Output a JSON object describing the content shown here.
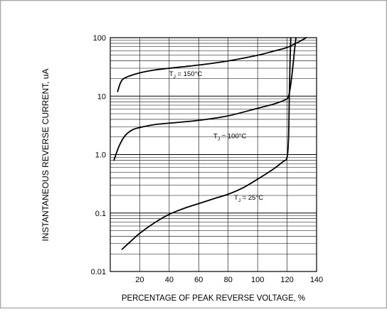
{
  "chart_data": {
    "type": "line",
    "title": "",
    "xlabel": "PERCENTAGE OF PEAK REVERSE VOLTAGE, %",
    "ylabel": "INSTANTANEOUS REVERSE CURRENT, uA",
    "x_range": [
      0,
      140
    ],
    "y_range": [
      0.01,
      100
    ],
    "y_scale": "log",
    "grid": "horizontal log minor gridlines",
    "x_ticks": [
      "20",
      "40",
      "60",
      "80",
      "100",
      "120",
      "140"
    ],
    "y_ticks": [
      "0.01",
      "0.1",
      "1.0",
      "10",
      "100"
    ],
    "series": [
      {
        "name": "T J = 150°C",
        "points": [
          [
            5,
            12
          ],
          [
            7,
            17
          ],
          [
            10,
            20.5
          ],
          [
            20,
            25
          ],
          [
            30,
            28
          ],
          [
            40,
            30
          ],
          [
            60,
            34
          ],
          [
            80,
            40
          ],
          [
            100,
            50
          ],
          [
            110,
            58
          ],
          [
            120,
            68
          ],
          [
            128,
            85
          ],
          [
            133,
            100
          ]
        ]
      },
      {
        "name": "T J = 100°C",
        "points": [
          [
            2.5,
            0.8
          ],
          [
            6,
            1.4
          ],
          [
            10,
            2.1
          ],
          [
            15,
            2.65
          ],
          [
            20,
            2.9
          ],
          [
            30,
            3.25
          ],
          [
            40,
            3.45
          ],
          [
            60,
            3.85
          ],
          [
            80,
            4.6
          ],
          [
            100,
            6.2
          ],
          [
            110,
            7.2
          ],
          [
            118,
            8.5
          ],
          [
            121,
            10
          ],
          [
            123,
            20
          ],
          [
            125,
            60
          ],
          [
            126,
            100
          ]
        ]
      },
      {
        "name": "T J = 25°C",
        "points": [
          [
            8,
            0.024
          ],
          [
            14,
            0.033
          ],
          [
            20,
            0.045
          ],
          [
            30,
            0.068
          ],
          [
            40,
            0.095
          ],
          [
            50,
            0.12
          ],
          [
            60,
            0.145
          ],
          [
            70,
            0.175
          ],
          [
            80,
            0.21
          ],
          [
            90,
            0.27
          ],
          [
            100,
            0.38
          ],
          [
            110,
            0.55
          ],
          [
            117,
            0.75
          ],
          [
            120,
            0.9
          ],
          [
            121,
            2
          ],
          [
            121.5,
            10
          ],
          [
            122,
            40
          ],
          [
            122.5,
            100
          ]
        ]
      }
    ],
    "annotations": [
      {
        "main": "T",
        "sub": "J",
        "rest": " = 150°C",
        "x": 40,
        "y": 22
      },
      {
        "main": "T",
        "sub": "J",
        "rest": " = 100°C",
        "x": 70,
        "y": 1.9
      },
      {
        "main": "T",
        "sub": "J",
        "rest": " = 25°C",
        "x": 84,
        "y": 0.17
      }
    ]
  }
}
